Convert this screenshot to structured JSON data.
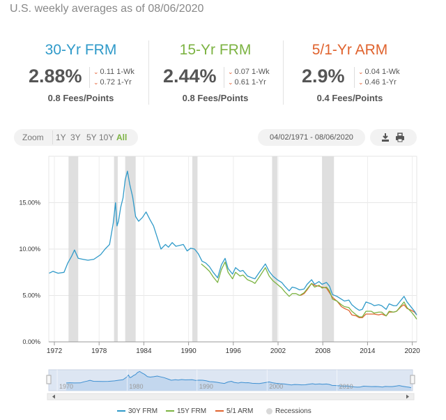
{
  "header": {
    "subtitle": "U.S. weekly averages as of 08/06/2020"
  },
  "cards": [
    {
      "name": "30-Yr FRM",
      "color": "#2f9ac9",
      "rate": "2.88%",
      "wk": "0.11 1-Wk",
      "yr": "0.72 1-Yr",
      "fees": "0.8 Fees/Points"
    },
    {
      "name": "15-Yr FRM",
      "color": "#7cb342",
      "rate": "2.44%",
      "wk": "0.07 1-Wk",
      "yr": "0.61 1-Yr",
      "fees": "0.8 Fees/Points"
    },
    {
      "name": "5/1-Yr ARM",
      "color": "#e0632e",
      "rate": "2.9%",
      "wk": "0.04 1-Wk",
      "yr": "0.46 1-Yr",
      "fees": "0.4 Fees/Points"
    }
  ],
  "toolbar": {
    "zoom_label": "Zoom",
    "zoom_options": [
      "1Y",
      "3Y",
      "5Y",
      "10Y",
      "All"
    ],
    "zoom_selected": "All",
    "date_range": "04/02/1971 - 08/06/2020",
    "download_icon": "download-icon",
    "print_icon": "print-icon"
  },
  "legend": [
    {
      "label": "30Y FRM",
      "color": "#2f9ac9"
    },
    {
      "label": "15Y FRM",
      "color": "#7cb342"
    },
    {
      "label": "5/1 ARM",
      "color": "#e0632e"
    },
    {
      "label": "Recessions",
      "color": "#d9d9d9"
    }
  ],
  "chart_data": {
    "type": "line",
    "xlim": [
      1971.25,
      2020.6
    ],
    "ylim": [
      0,
      20
    ],
    "yticks": [
      "0.00%",
      "5.00%",
      "10.00%",
      "15.00%"
    ],
    "ytick_values": [
      0,
      5,
      10,
      15
    ],
    "xticks": [
      "1972",
      "1978",
      "1984",
      "1990",
      "1996",
      "2002",
      "2008",
      "2014",
      "2020"
    ],
    "xtick_values": [
      1972,
      1978,
      1984,
      1990,
      1996,
      2002,
      2008,
      2014,
      2020
    ],
    "grid": true,
    "recessions": [
      [
        1973.9,
        1975.2
      ],
      [
        1980.0,
        1980.5
      ],
      [
        1981.5,
        1982.9
      ],
      [
        1990.5,
        1991.2
      ],
      [
        2001.2,
        2001.9
      ],
      [
        2007.9,
        2009.5
      ]
    ],
    "series": [
      {
        "name": "30Y FRM",
        "color": "#2f9ac9",
        "x": [
          1971.3,
          1971.8,
          1972.5,
          1973.3,
          1973.8,
          1974.3,
          1974.7,
          1975.2,
          1975.8,
          1976.5,
          1977.3,
          1978.2,
          1978.8,
          1979.4,
          1979.9,
          1980.2,
          1980.4,
          1980.6,
          1980.9,
          1981.2,
          1981.5,
          1981.8,
          1982.1,
          1982.5,
          1982.9,
          1983.3,
          1983.8,
          1984.3,
          1984.8,
          1985.3,
          1985.9,
          1986.3,
          1986.9,
          1987.3,
          1987.8,
          1988.3,
          1988.8,
          1989.3,
          1989.8,
          1990.3,
          1990.8,
          1991.3,
          1991.8,
          1992.3,
          1992.8,
          1993.3,
          1993.9,
          1994.4,
          1994.9,
          1995.3,
          1995.9,
          1996.3,
          1996.9,
          1997.3,
          1997.9,
          1998.5,
          1998.9,
          1999.5,
          2000.3,
          2000.8,
          2001.3,
          2001.9,
          2002.5,
          2002.9,
          2003.5,
          2003.9,
          2004.4,
          2004.9,
          2005.5,
          2005.9,
          2006.5,
          2006.9,
          2007.5,
          2007.9,
          2008.5,
          2008.9,
          2009.3,
          2009.9,
          2010.5,
          2010.9,
          2011.5,
          2011.9,
          2012.5,
          2012.9,
          2013.3,
          2013.8,
          2014.5,
          2014.9,
          2015.5,
          2015.9,
          2016.5,
          2016.9,
          2017.5,
          2017.9,
          2018.5,
          2018.9,
          2019.3,
          2019.9,
          2020.3,
          2020.6
        ],
        "y": [
          7.4,
          7.6,
          7.4,
          7.5,
          8.5,
          9.2,
          9.9,
          9.0,
          8.9,
          8.8,
          8.9,
          9.4,
          10.0,
          10.5,
          12.8,
          15.0,
          12.5,
          13.0,
          14.5,
          15.5,
          17.5,
          18.4,
          17.0,
          15.6,
          13.5,
          13.0,
          13.4,
          14.0,
          13.2,
          12.5,
          11.0,
          10.0,
          10.5,
          10.2,
          10.7,
          10.3,
          10.4,
          10.5,
          9.8,
          10.1,
          10.0,
          9.5,
          8.7,
          8.5,
          8.1,
          7.5,
          6.9,
          8.3,
          9.0,
          7.9,
          7.3,
          8.0,
          7.6,
          7.7,
          7.1,
          6.9,
          6.8,
          7.5,
          8.4,
          7.6,
          7.1,
          6.7,
          6.4,
          6.0,
          5.5,
          5.9,
          5.8,
          5.6,
          5.7,
          6.2,
          6.7,
          6.2,
          6.5,
          6.2,
          6.4,
          6.0,
          5.1,
          4.9,
          4.6,
          4.4,
          4.5,
          4.0,
          3.6,
          3.4,
          3.5,
          4.3,
          4.1,
          3.9,
          4.0,
          3.9,
          3.5,
          4.1,
          3.9,
          3.9,
          4.5,
          4.9,
          4.3,
          3.7,
          3.3,
          2.9
        ]
      },
      {
        "name": "15Y FRM",
        "color": "#7cb342",
        "x": [
          1991.7,
          1992.3,
          1992.8,
          1993.3,
          1993.9,
          1994.4,
          1994.9,
          1995.3,
          1995.9,
          1996.3,
          1996.9,
          1997.3,
          1997.9,
          1998.5,
          1998.9,
          1999.5,
          2000.3,
          2000.8,
          2001.3,
          2001.9,
          2002.5,
          2002.9,
          2003.5,
          2003.9,
          2004.4,
          2004.9,
          2005.5,
          2005.9,
          2006.5,
          2006.9,
          2007.5,
          2007.9,
          2008.5,
          2008.9,
          2009.3,
          2009.9,
          2010.5,
          2010.9,
          2011.5,
          2011.9,
          2012.5,
          2012.9,
          2013.3,
          2013.8,
          2014.5,
          2014.9,
          2015.5,
          2015.9,
          2016.5,
          2016.9,
          2017.5,
          2017.9,
          2018.5,
          2018.9,
          2019.3,
          2019.9,
          2020.3,
          2020.6
        ],
        "y": [
          8.4,
          8.0,
          7.6,
          7.0,
          6.4,
          7.8,
          8.6,
          7.5,
          6.8,
          7.5,
          7.1,
          7.2,
          6.7,
          6.5,
          6.3,
          7.0,
          8.0,
          7.1,
          6.6,
          6.2,
          5.8,
          5.4,
          4.9,
          5.2,
          5.2,
          5.0,
          5.3,
          5.7,
          6.3,
          5.9,
          6.1,
          5.8,
          5.9,
          5.5,
          4.6,
          4.4,
          4.0,
          3.8,
          3.7,
          3.3,
          2.9,
          2.7,
          2.7,
          3.3,
          3.3,
          3.1,
          3.2,
          3.2,
          2.8,
          3.3,
          3.2,
          3.3,
          3.9,
          4.3,
          3.7,
          3.2,
          2.8,
          2.44
        ]
      },
      {
        "name": "5/1 ARM",
        "color": "#e0632e",
        "x": [
          2005.0,
          2005.5,
          2005.9,
          2006.5,
          2006.9,
          2007.5,
          2007.9,
          2008.5,
          2008.9,
          2009.3,
          2009.9,
          2010.5,
          2010.9,
          2011.5,
          2011.9,
          2012.5,
          2012.9,
          2013.3,
          2013.8,
          2014.5,
          2014.9,
          2015.5,
          2015.9,
          2016.5,
          2016.9,
          2017.5,
          2017.9,
          2018.5,
          2018.9,
          2019.3,
          2019.9,
          2020.3,
          2020.6
        ],
        "y": [
          5.0,
          5.2,
          5.6,
          6.3,
          6.1,
          6.0,
          5.9,
          5.8,
          5.3,
          4.8,
          4.4,
          3.8,
          3.6,
          3.4,
          2.9,
          2.8,
          2.6,
          2.6,
          3.0,
          3.0,
          3.0,
          2.9,
          3.0,
          2.8,
          3.2,
          3.2,
          3.3,
          3.8,
          4.0,
          3.6,
          3.4,
          3.2,
          2.9
        ]
      }
    ],
    "navigator": {
      "xticks": [
        "1970",
        "1980",
        "1990",
        "2000",
        "2010"
      ],
      "xtick_values": [
        1970,
        1980,
        1990,
        2000,
        2010
      ]
    }
  }
}
